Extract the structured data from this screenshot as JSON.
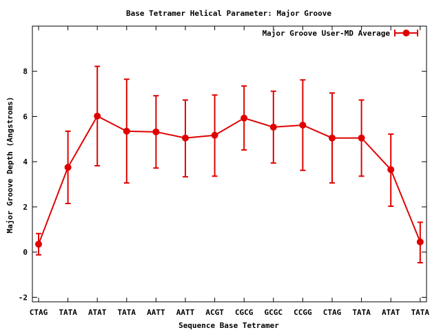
{
  "chart_data": {
    "type": "line",
    "title": "Base Tetramer Helical Parameter: Major Groove",
    "xlabel": "Sequence Base Tetramer",
    "ylabel": "Major Groove Depth (Angstroms)",
    "categories": [
      "CTAG",
      "TATA",
      "ATAT",
      "TATA",
      "AATT",
      "AATT",
      "ACGT",
      "CGCG",
      "GCGC",
      "CCGG",
      "CTAG",
      "TATA",
      "ATAT",
      "TATA"
    ],
    "ylim": [
      -2.2,
      10
    ],
    "yticks": [
      -2,
      0,
      2,
      4,
      6,
      8
    ],
    "grid": false,
    "legend_position": "top-right",
    "series": [
      {
        "name": "Major Groove User-MD Average",
        "color": "#e00000",
        "values": [
          0.35,
          3.75,
          6.02,
          5.35,
          5.32,
          5.05,
          5.17,
          5.93,
          5.53,
          5.62,
          5.05,
          5.05,
          3.65,
          0.45
        ],
        "error_low": [
          -0.12,
          2.15,
          3.82,
          3.06,
          3.72,
          3.33,
          3.36,
          4.52,
          3.94,
          3.62,
          3.06,
          3.36,
          2.03,
          -0.47
        ],
        "error_high": [
          0.82,
          5.35,
          8.22,
          7.65,
          6.92,
          6.73,
          6.95,
          7.35,
          7.12,
          7.62,
          7.04,
          6.73,
          5.22,
          1.32
        ]
      }
    ]
  }
}
